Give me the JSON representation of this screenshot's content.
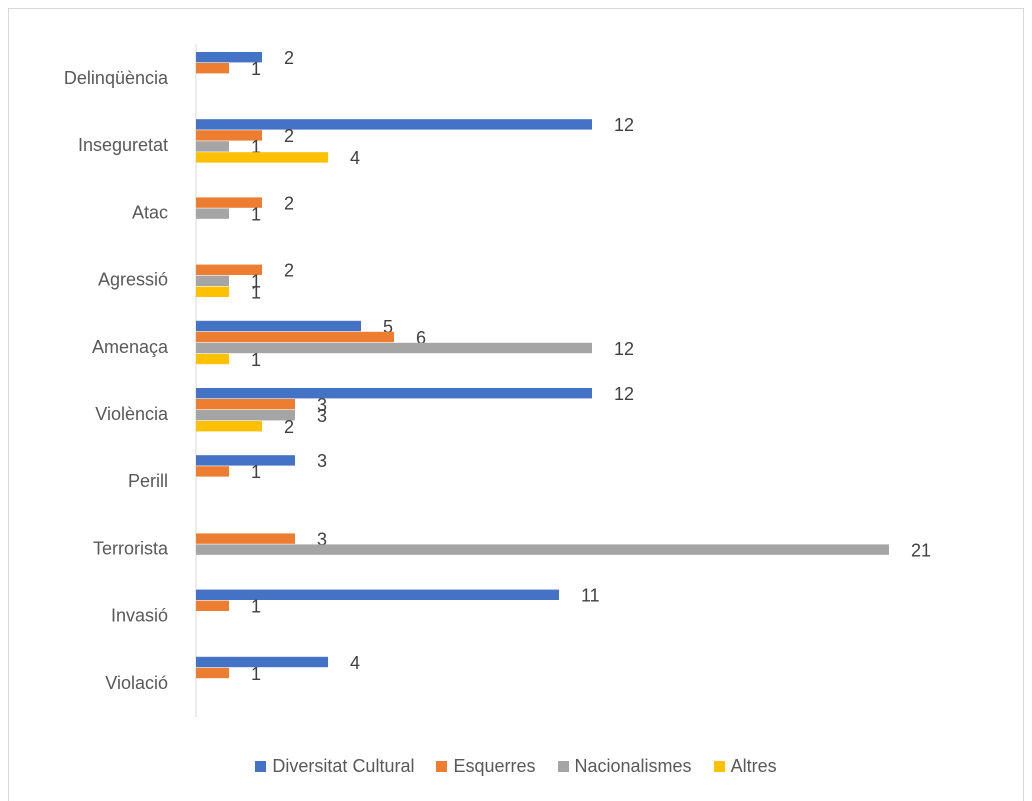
{
  "chart_data": {
    "type": "bar",
    "orientation": "horizontal",
    "categories": [
      "Delinqüència",
      "Inseguretat",
      "Atac",
      "Agressió",
      "Amenaça",
      "Violència",
      "Perill",
      "Terrorista",
      "Invasió",
      "Violació"
    ],
    "series": [
      {
        "name": "Diversitat Cultural",
        "color": "#4472c4",
        "values": [
          2,
          12,
          0,
          0,
          5,
          12,
          3,
          0,
          11,
          4
        ]
      },
      {
        "name": "Esquerres",
        "color": "#ed7d31",
        "values": [
          1,
          2,
          2,
          2,
          6,
          3,
          1,
          3,
          1,
          1
        ]
      },
      {
        "name": "Nacionalismes",
        "color": "#a5a5a5",
        "values": [
          0,
          1,
          1,
          1,
          12,
          3,
          0,
          21,
          0,
          0
        ]
      },
      {
        "name": "Altres",
        "color": "#ffc000",
        "values": [
          0,
          4,
          0,
          1,
          1,
          2,
          0,
          0,
          0,
          0
        ]
      }
    ],
    "labels": [
      [
        "2",
        "12",
        "",
        "",
        "5",
        "12",
        "3",
        "",
        "11",
        "4"
      ],
      [
        "1",
        "2",
        "2",
        "2",
        "6",
        "3",
        "1",
        "3",
        "1",
        "1"
      ],
      [
        "",
        "1",
        "1",
        "1",
        "12",
        "3",
        "",
        "21",
        "",
        ""
      ],
      [
        "",
        "4",
        "",
        "1",
        "1",
        "2",
        "",
        "",
        "",
        ""
      ]
    ],
    "xlim": [
      0,
      21
    ],
    "grid": false,
    "legend_position": "bottom"
  }
}
